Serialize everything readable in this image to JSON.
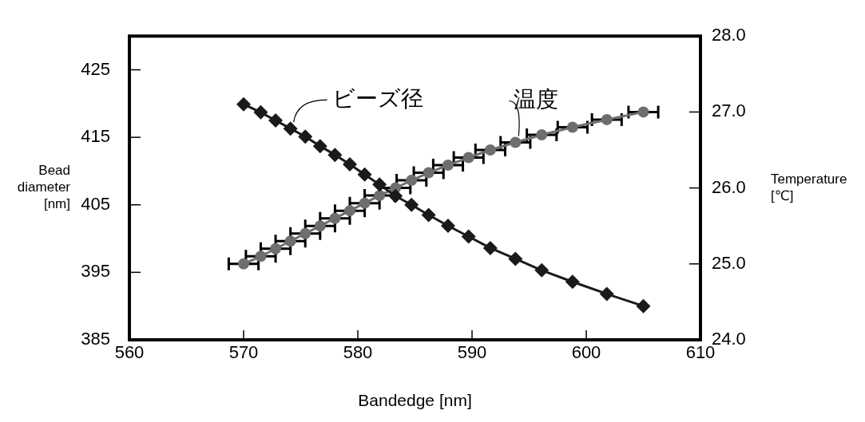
{
  "chart_data": {
    "type": "line",
    "xlabel": "Bandedge [nm]",
    "ylabel": "Bead diameter [nm]",
    "y2label": "Temperature [℃]",
    "x": [
      570.0,
      571.5,
      572.8,
      574.1,
      575.4,
      576.7,
      578.0,
      579.3,
      580.6,
      581.9,
      583.3,
      584.7,
      586.2,
      587.9,
      589.7,
      591.6,
      593.8,
      596.1,
      598.8,
      601.8,
      605.0
    ],
    "xlim": [
      560,
      610
    ],
    "xticks": [
      560,
      570,
      580,
      590,
      600,
      610
    ],
    "ylim": [
      385,
      430
    ],
    "yticks": [
      385,
      395,
      405,
      415,
      425
    ],
    "y2lim": [
      24,
      28
    ],
    "y2ticks": [
      {
        "value": 24,
        "label": "24.0"
      },
      {
        "value": 25,
        "label": "25.0"
      },
      {
        "value": 26,
        "label": "26.0"
      },
      {
        "value": 27,
        "label": "27.0"
      },
      {
        "value": 28,
        "label": "28.0"
      }
    ],
    "series": [
      {
        "name": "ビーズ径",
        "color": "#1a1a1a",
        "marker": "diamond",
        "values": [
          419.9,
          418.7,
          417.5,
          416.3,
          415.1,
          413.7,
          412.4,
          411.0,
          409.5,
          408.0,
          406.3,
          405.0,
          403.5,
          401.9,
          400.3,
          398.6,
          397.0,
          395.3,
          393.6,
          391.8,
          390.0
        ]
      },
      {
        "name": "温度",
        "color": "#6e6e6e",
        "marker": "circle",
        "axis": "y2",
        "values": [
          25.0,
          25.1,
          25.2,
          25.3,
          25.4,
          25.5,
          25.6,
          25.7,
          25.8,
          25.9,
          26.0,
          26.1,
          26.2,
          26.3,
          26.4,
          26.5,
          26.6,
          26.7,
          26.8,
          26.9,
          27.0
        ],
        "xerrors": [
          1.3,
          1.3,
          1.3,
          1.3,
          1.3,
          1.3,
          1.3,
          1.3,
          1.3,
          1.3,
          1.3,
          1.3,
          1.3,
          1.3,
          1.3,
          1.3,
          1.3,
          1.3,
          1.3,
          1.3,
          1.3
        ]
      }
    ],
    "legend": false,
    "grid": false
  }
}
